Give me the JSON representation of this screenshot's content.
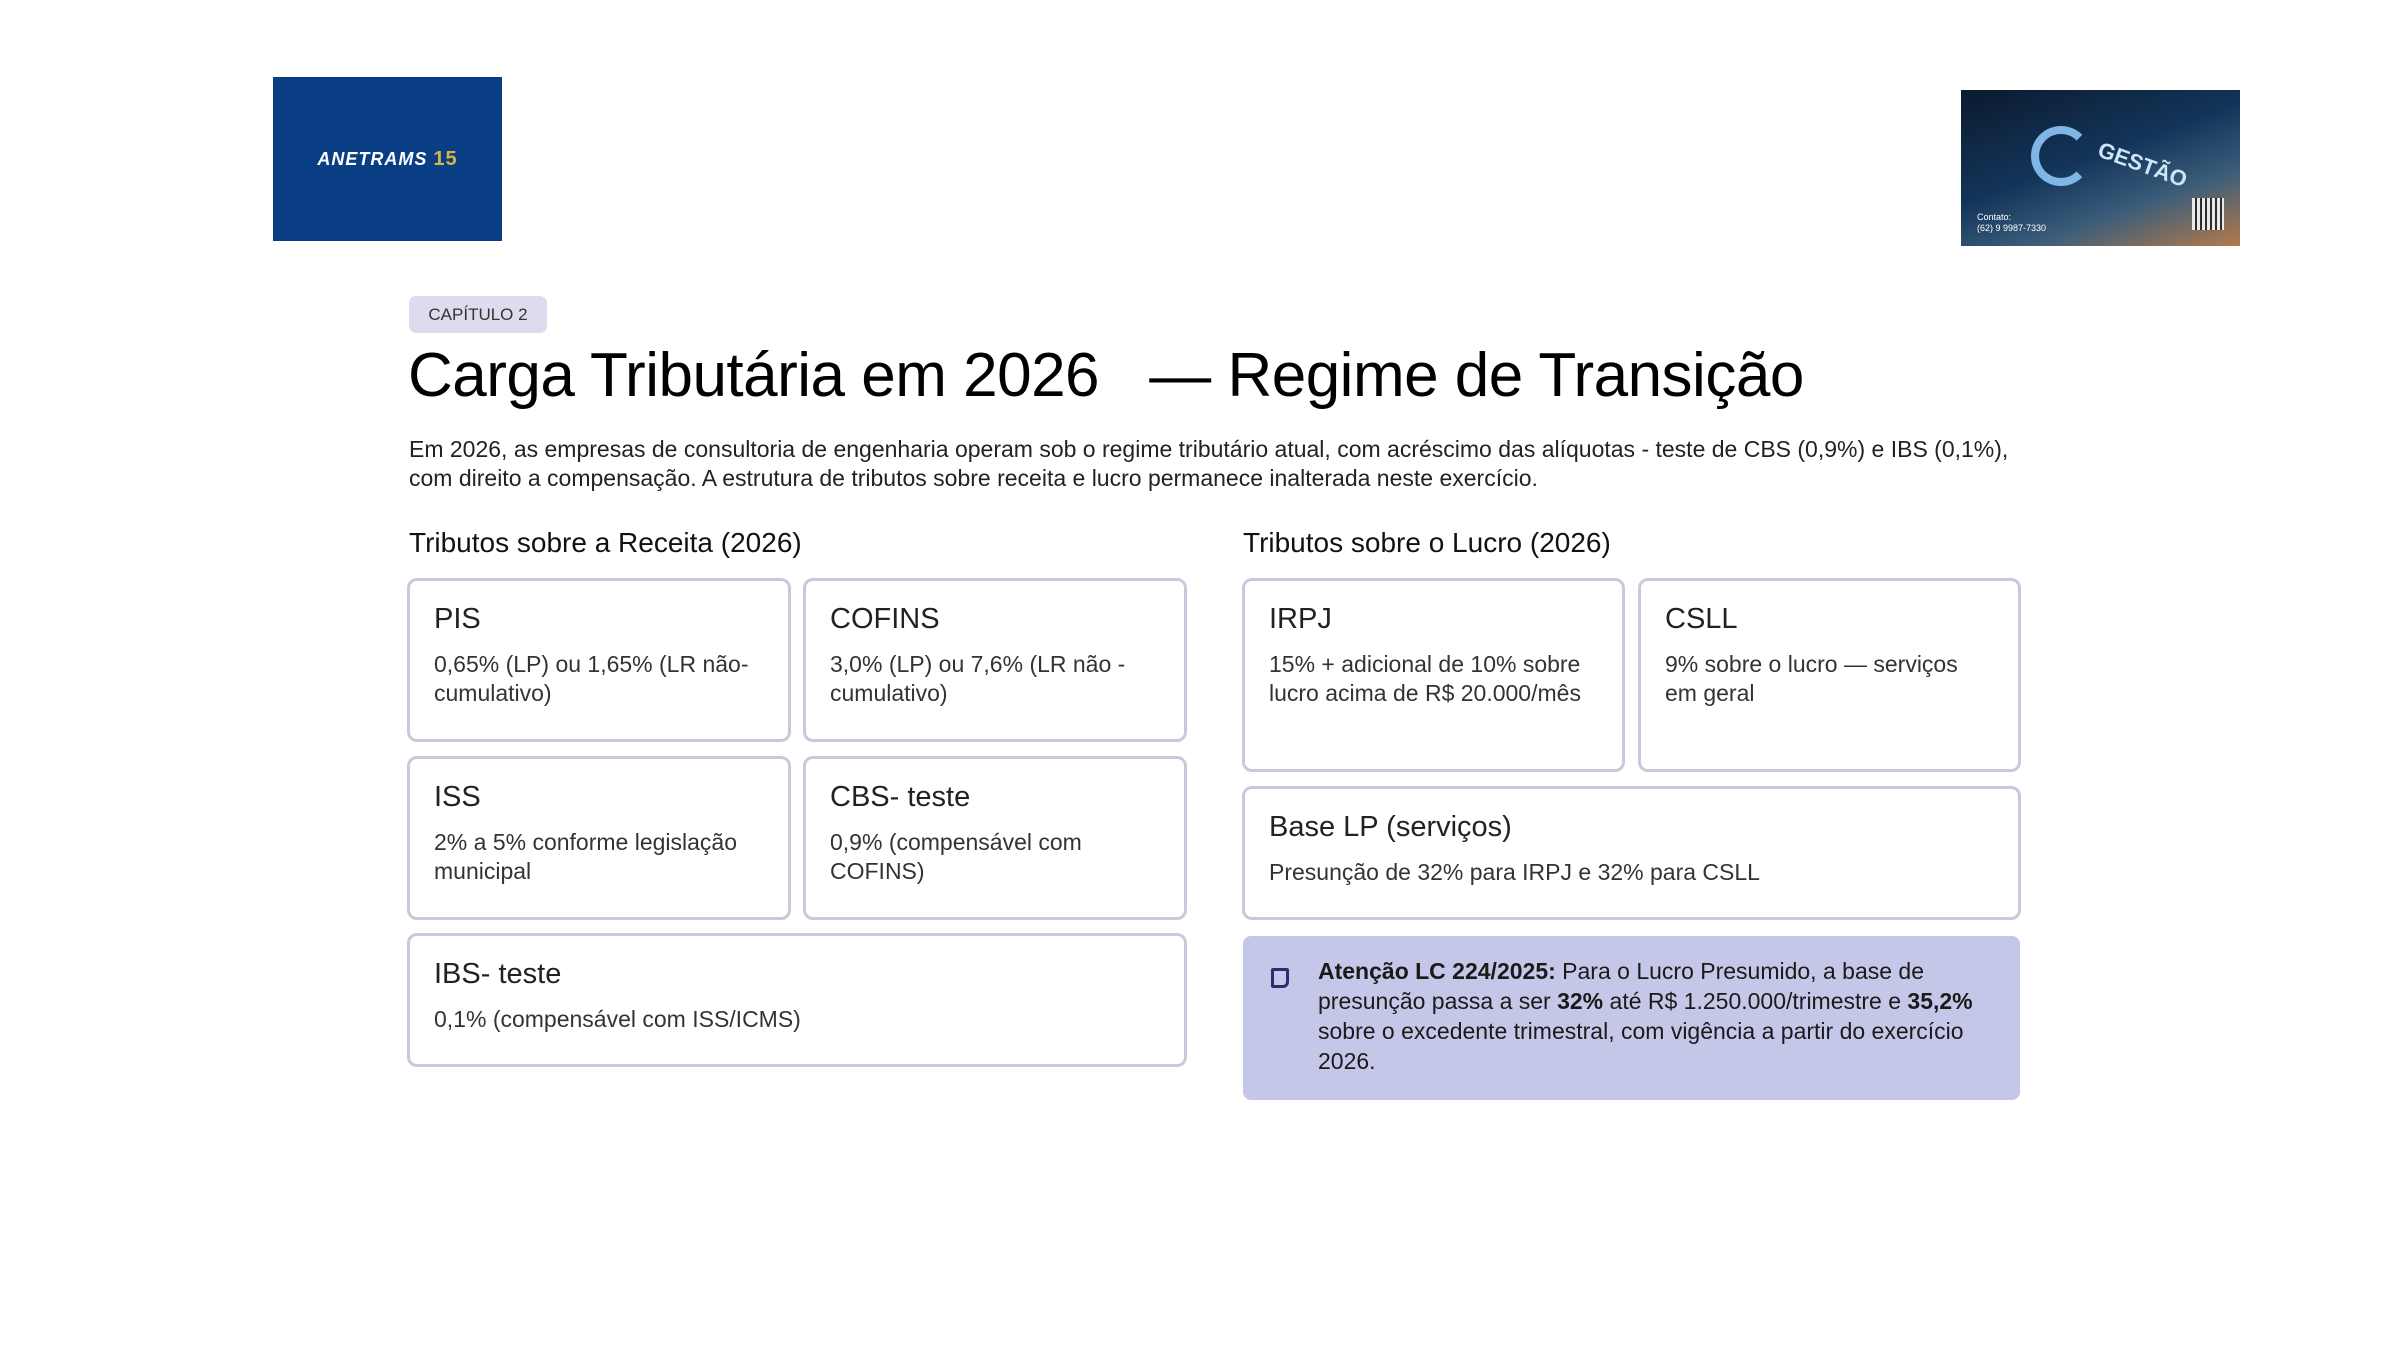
{
  "logos": {
    "left": {
      "text": "ANETRAMS",
      "number": "15"
    },
    "right": {
      "brand": "GESTÃO",
      "contact": "Contato:",
      "phone": "(62) 9 9987-7330"
    }
  },
  "header": {
    "chapter": "CAPÍTULO 2",
    "title": "Carga Tributária em 2026   — Regime de Transição",
    "intro": "Em 2026, as empresas de consultoria de engenharia operam sob o regime tributário atual, com acréscimo das alíquotas         - teste de CBS  (0,9%) e IBS (0,1%), com direito a compensação.    A estrutura de tributos sobre receita e lucro permanece inalterada neste exercício."
  },
  "revenue": {
    "heading": "Tributos sobre a Receita (2026)",
    "cards": [
      {
        "title": "PIS",
        "text": "0,65% (LP) ou 1,65% (LR não- cumulativo)"
      },
      {
        "title": "COFINS",
        "text": "3,0% (LP) ou 7,6% (LR não  - cumulativo)"
      },
      {
        "title": "ISS",
        "text": "2% a 5% conforme legislação municipal"
      },
      {
        "title": "CBS- teste",
        "text": "0,9% (compensável com COFINS)"
      },
      {
        "title": "IBS- teste",
        "text": "0,1% (compensável com ISS/ICMS)"
      }
    ]
  },
  "profit": {
    "heading": "Tributos sobre o Lucro (2026)",
    "cards": [
      {
        "title": "IRPJ",
        "text": "15% + adicional de 10% sobre lucro acima de R$ 20.000/mês"
      },
      {
        "title": "CSLL",
        "text": "9% sobre o lucro   — serviços em geral"
      },
      {
        "title": "Base LP (serviços)",
        "text": "Presunção de 32% para IRPJ e 32% para CSLL"
      }
    ]
  },
  "note": {
    "icon": "note-icon",
    "label": "Atenção LC 224/2025:",
    "t1": "   Para o Lucro Presumido, a base de presunção passa a ser  ",
    "b1": "32%",
    "t2": "  até R$ 1.250.000/trimestre e ",
    "b2": "35,2%",
    "t3": "  sobre o excedente trimestral, com vigência a partir do exercício 2026."
  }
}
